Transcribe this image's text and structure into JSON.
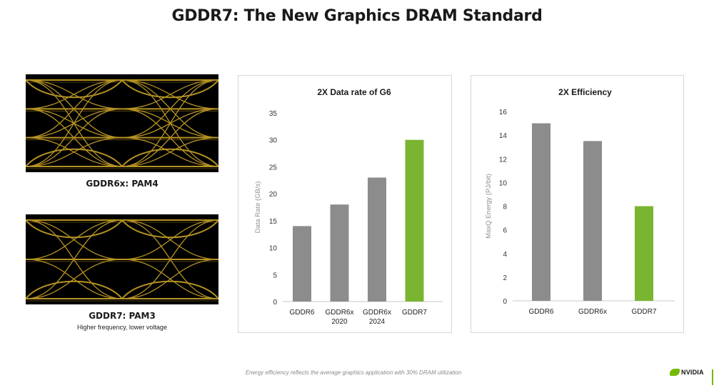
{
  "page": {
    "title": "GDDR7: The New Graphics DRAM Standard",
    "footnote": "Energy efficiency reflects the average graphics application with 30% DRAM utilization",
    "logo_text": "NVIDIA"
  },
  "eye_diagrams": [
    {
      "label": "GDDR6x: PAM4",
      "levels": 4
    },
    {
      "label": "GDDR7: PAM3",
      "sublabel": "Higher frequency, lower voltage",
      "levels": 3
    }
  ],
  "colors": {
    "gray_bar": "#8c8c8c",
    "green_bar": "#7ab532",
    "eye_trace": "#c9a227",
    "nvidia_green": "#76b900"
  },
  "chart_data": [
    {
      "type": "bar",
      "title": "2X Data rate of G6",
      "xlabel": "",
      "ylabel": "Data Rate (GB/s)",
      "categories": [
        [
          "GDDR6"
        ],
        [
          "GDDR6x",
          "2020"
        ],
        [
          "GDDR6x",
          "2024"
        ],
        [
          "GDDR7"
        ]
      ],
      "values": [
        14,
        18,
        23,
        30
      ],
      "highlight": [
        false,
        false,
        false,
        true
      ],
      "ylim": [
        0,
        35
      ],
      "yticks": [
        0,
        5,
        10,
        15,
        20,
        25,
        30,
        35
      ],
      "grid": false
    },
    {
      "type": "bar",
      "title": "2X Efficiency",
      "xlabel": "",
      "ylabel": "MaxQ Energy (PJ/bit)",
      "categories": [
        [
          "GDDR6"
        ],
        [
          "GDDR6x"
        ],
        [
          "GDDR7"
        ]
      ],
      "values": [
        15,
        13.5,
        8
      ],
      "highlight": [
        false,
        false,
        true
      ],
      "ylim": [
        0,
        16
      ],
      "yticks": [
        0,
        2,
        4,
        6,
        8,
        10,
        12,
        14,
        16
      ],
      "grid": false
    }
  ]
}
